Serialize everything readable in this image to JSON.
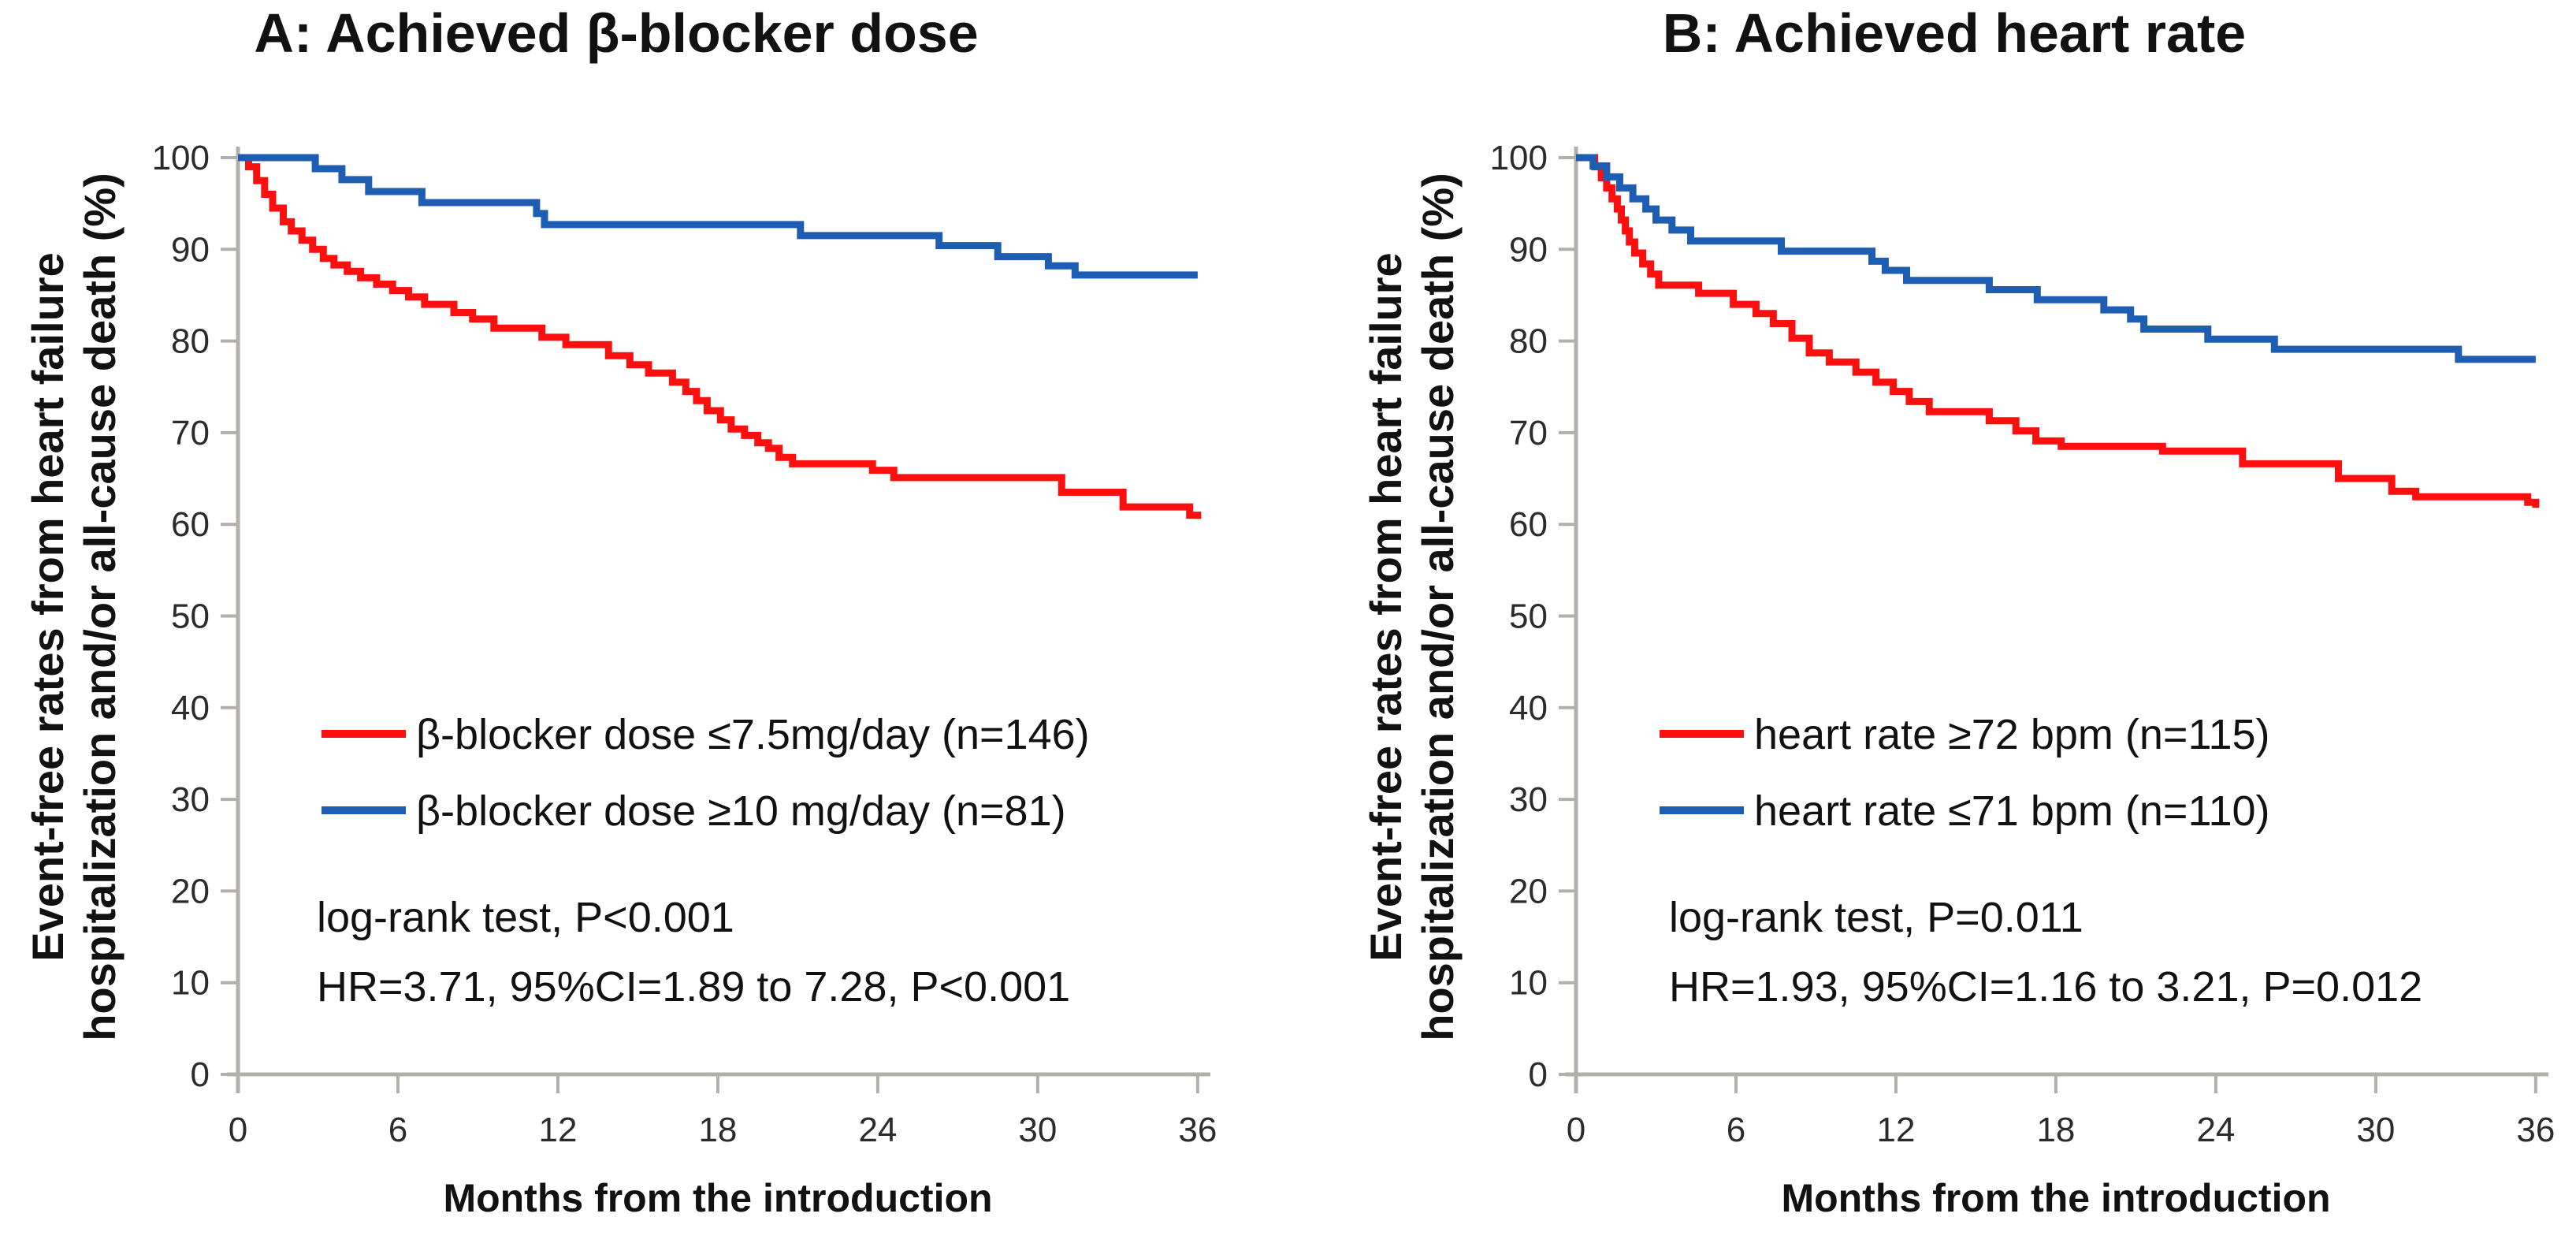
{
  "figure": {
    "kind": "two-panel Kaplan-Meier survival figure",
    "background": "#ffffff"
  },
  "chart_data": [
    {
      "id": "A",
      "type": "line",
      "step": true,
      "title": "A: Achieved β-blocker dose",
      "xlabel": "Months from the introduction",
      "ylabel_lines": [
        "Event-free rates from heart failure",
        "hospitalization and/or  all-cause death  (%)"
      ],
      "xlim": [
        0,
        36
      ],
      "ylim": [
        0,
        100
      ],
      "xticks": [
        0,
        6,
        12,
        18,
        24,
        30,
        36
      ],
      "yticks": [
        0,
        10,
        20,
        30,
        40,
        50,
        60,
        70,
        80,
        90,
        100
      ],
      "grid": false,
      "legend_position": "inside-left-middle",
      "axis_color": "#b3b0ac",
      "series": [
        {
          "name": "β-blocker dose ≤7.5mg/day (n=146)",
          "color": "#fb0f0f",
          "points": [
            [
              0,
              100
            ],
            [
              0.4,
              99
            ],
            [
              0.7,
              97.5
            ],
            [
              1.0,
              96
            ],
            [
              1.3,
              94.5
            ],
            [
              1.7,
              93
            ],
            [
              2.0,
              92
            ],
            [
              2.4,
              91
            ],
            [
              2.8,
              90
            ],
            [
              3.2,
              89
            ],
            [
              3.6,
              88.3
            ],
            [
              4.1,
              87.6
            ],
            [
              4.6,
              86.9
            ],
            [
              5.2,
              86.2
            ],
            [
              5.8,
              85.5
            ],
            [
              6.4,
              84.8
            ],
            [
              7.0,
              84.0
            ],
            [
              8.1,
              83.1
            ],
            [
              8.8,
              82.4
            ],
            [
              9.6,
              81.4
            ],
            [
              11.4,
              80.4
            ],
            [
              12.3,
              79.6
            ],
            [
              13.9,
              78.4
            ],
            [
              14.7,
              77.4
            ],
            [
              15.4,
              76.5
            ],
            [
              16.3,
              75.5
            ],
            [
              16.8,
              74.5
            ],
            [
              17.2,
              73.5
            ],
            [
              17.6,
              72.4
            ],
            [
              18.1,
              71.4
            ],
            [
              18.5,
              70.4
            ],
            [
              19.0,
              69.7
            ],
            [
              19.5,
              68.9
            ],
            [
              19.9,
              68.3
            ],
            [
              20.3,
              67.3
            ],
            [
              20.8,
              66.6
            ],
            [
              23.8,
              65.9
            ],
            [
              24.6,
              65.1
            ],
            [
              30.9,
              63.5
            ],
            [
              33.2,
              61.9
            ],
            [
              35.7,
              61.0
            ],
            [
              36,
              60.6
            ]
          ]
        },
        {
          "name": "β-blocker dose ≥10 mg/day (n=81)",
          "color": "#1e5eb2",
          "points": [
            [
              0,
              100
            ],
            [
              2.9,
              98.8
            ],
            [
              3.9,
              97.6
            ],
            [
              4.9,
              96.3
            ],
            [
              6.9,
              95.1
            ],
            [
              11.2,
              93.9
            ],
            [
              11.5,
              92.7
            ],
            [
              21.1,
              91.5
            ],
            [
              26.3,
              90.4
            ],
            [
              28.5,
              89.2
            ],
            [
              30.4,
              88.2
            ],
            [
              31.4,
              87.2
            ]
          ]
        }
      ],
      "annotations": [
        "log-rank test, P<0.001",
        "HR=3.71, 95%CI=1.89 to 7.28, P<0.001"
      ]
    },
    {
      "id": "B",
      "type": "line",
      "step": true,
      "title": "B: Achieved heart rate",
      "xlabel": "Months from the introduction",
      "ylabel_lines": [
        "Event-free rates from heart failure",
        "hospitalization and/or  all-cause death  (%)"
      ],
      "xlim": [
        0,
        36
      ],
      "ylim": [
        0,
        100
      ],
      "xticks": [
        0,
        6,
        12,
        18,
        24,
        30,
        36
      ],
      "yticks": [
        0,
        10,
        20,
        30,
        40,
        50,
        60,
        70,
        80,
        90,
        100
      ],
      "grid": false,
      "legend_position": "inside-left-middle",
      "axis_color": "#b3b0ac",
      "series": [
        {
          "name": "heart rate ≥72 bpm (n=115)",
          "color": "#fb0f0f",
          "points": [
            [
              0,
              100
            ],
            [
              0.7,
              99.0
            ],
            [
              0.95,
              97.8
            ],
            [
              1.15,
              96.7
            ],
            [
              1.35,
              95.5
            ],
            [
              1.55,
              94.4
            ],
            [
              1.7,
              93.2
            ],
            [
              1.85,
              92.0
            ],
            [
              2.0,
              90.8
            ],
            [
              2.2,
              89.6
            ],
            [
              2.5,
              88.4
            ],
            [
              2.8,
              87.3
            ],
            [
              3.1,
              86.1
            ],
            [
              4.6,
              85.2
            ],
            [
              5.9,
              84.0
            ],
            [
              6.75,
              83.0
            ],
            [
              7.4,
              81.9
            ],
            [
              8.1,
              80.3
            ],
            [
              8.75,
              78.7
            ],
            [
              9.5,
              77.7
            ],
            [
              10.5,
              76.6
            ],
            [
              11.25,
              75.5
            ],
            [
              11.9,
              74.5
            ],
            [
              12.5,
              73.4
            ],
            [
              13.25,
              72.3
            ],
            [
              15.5,
              71.3
            ],
            [
              16.5,
              70.2
            ],
            [
              17.25,
              69.1
            ],
            [
              18.2,
              68.5
            ],
            [
              22.0,
              68.0
            ],
            [
              25.0,
              66.6
            ],
            [
              28.6,
              65.0
            ],
            [
              30.6,
              63.6
            ],
            [
              31.5,
              63.0
            ],
            [
              35.7,
              62.4
            ],
            [
              36,
              61.8
            ]
          ]
        },
        {
          "name": "heart rate ≤71 bpm (n=110)",
          "color": "#1e5eb2",
          "points": [
            [
              0,
              100
            ],
            [
              0.64,
              99.1
            ],
            [
              1.15,
              97.9
            ],
            [
              1.64,
              96.7
            ],
            [
              2.13,
              95.5
            ],
            [
              2.62,
              94.4
            ],
            [
              3.0,
              93.2
            ],
            [
              3.6,
              92.1
            ],
            [
              4.3,
              90.9
            ],
            [
              7.7,
              89.8
            ],
            [
              11.1,
              88.7
            ],
            [
              11.6,
              87.7
            ],
            [
              12.4,
              86.6
            ],
            [
              15.5,
              85.6
            ],
            [
              17.3,
              84.5
            ],
            [
              19.8,
              83.4
            ],
            [
              20.8,
              82.4
            ],
            [
              21.3,
              81.3
            ],
            [
              23.7,
              80.2
            ],
            [
              26.2,
              79.1
            ],
            [
              33.1,
              78.0
            ]
          ]
        }
      ],
      "annotations": [
        "log-rank test, P=0.011",
        "HR=1.93, 95%CI=1.16 to 3.21, P=0.012"
      ]
    }
  ]
}
